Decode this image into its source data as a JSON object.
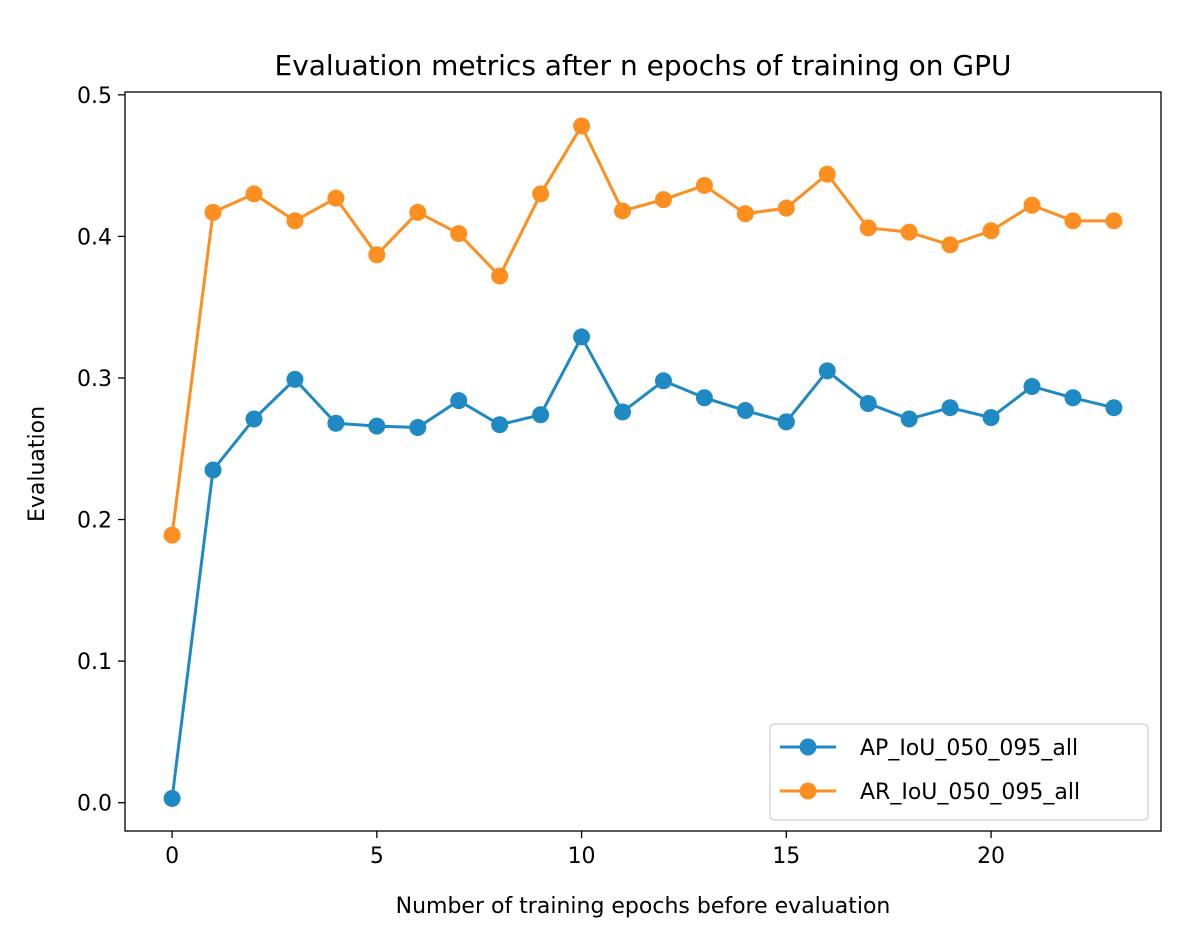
{
  "chart_data": {
    "type": "line",
    "title": "Evaluation metrics after n epochs of training on GPU",
    "xlabel": "Number of training epochs before evaluation",
    "ylabel": "Evaluation",
    "xlim": [
      -1.15,
      24.15
    ],
    "ylim": [
      -0.02,
      0.502
    ],
    "x_ticks": [
      0,
      5,
      10,
      15,
      20
    ],
    "y_ticks": [
      0.0,
      0.1,
      0.2,
      0.3,
      0.4,
      0.5
    ],
    "x_tick_labels": [
      "0",
      "5",
      "10",
      "15",
      "20"
    ],
    "y_tick_labels": [
      "0.0",
      "0.1",
      "0.2",
      "0.3",
      "0.4",
      "0.5"
    ],
    "grid": false,
    "legend_position": "lower-right",
    "x": [
      0,
      1,
      2,
      3,
      4,
      5,
      6,
      7,
      8,
      9,
      10,
      11,
      12,
      13,
      14,
      15,
      16,
      17,
      18,
      19,
      20,
      21,
      22,
      23
    ],
    "series": [
      {
        "name": "AP_IoU_050_095_all",
        "color": "#1f89c4",
        "marker": "circle",
        "values": [
          0.003,
          0.235,
          0.271,
          0.299,
          0.268,
          0.266,
          0.265,
          0.284,
          0.267,
          0.274,
          0.329,
          0.276,
          0.298,
          0.286,
          0.277,
          0.269,
          0.305,
          0.282,
          0.271,
          0.279,
          0.272,
          0.294,
          0.286,
          0.279
        ]
      },
      {
        "name": "AR_IoU_050_095_all",
        "color": "#fd8f20",
        "marker": "circle",
        "values": [
          0.189,
          0.417,
          0.43,
          0.411,
          0.427,
          0.387,
          0.417,
          0.402,
          0.372,
          0.43,
          0.478,
          0.418,
          0.426,
          0.436,
          0.416,
          0.42,
          0.444,
          0.406,
          0.403,
          0.394,
          0.404,
          0.422,
          0.411,
          0.411
        ]
      }
    ]
  }
}
